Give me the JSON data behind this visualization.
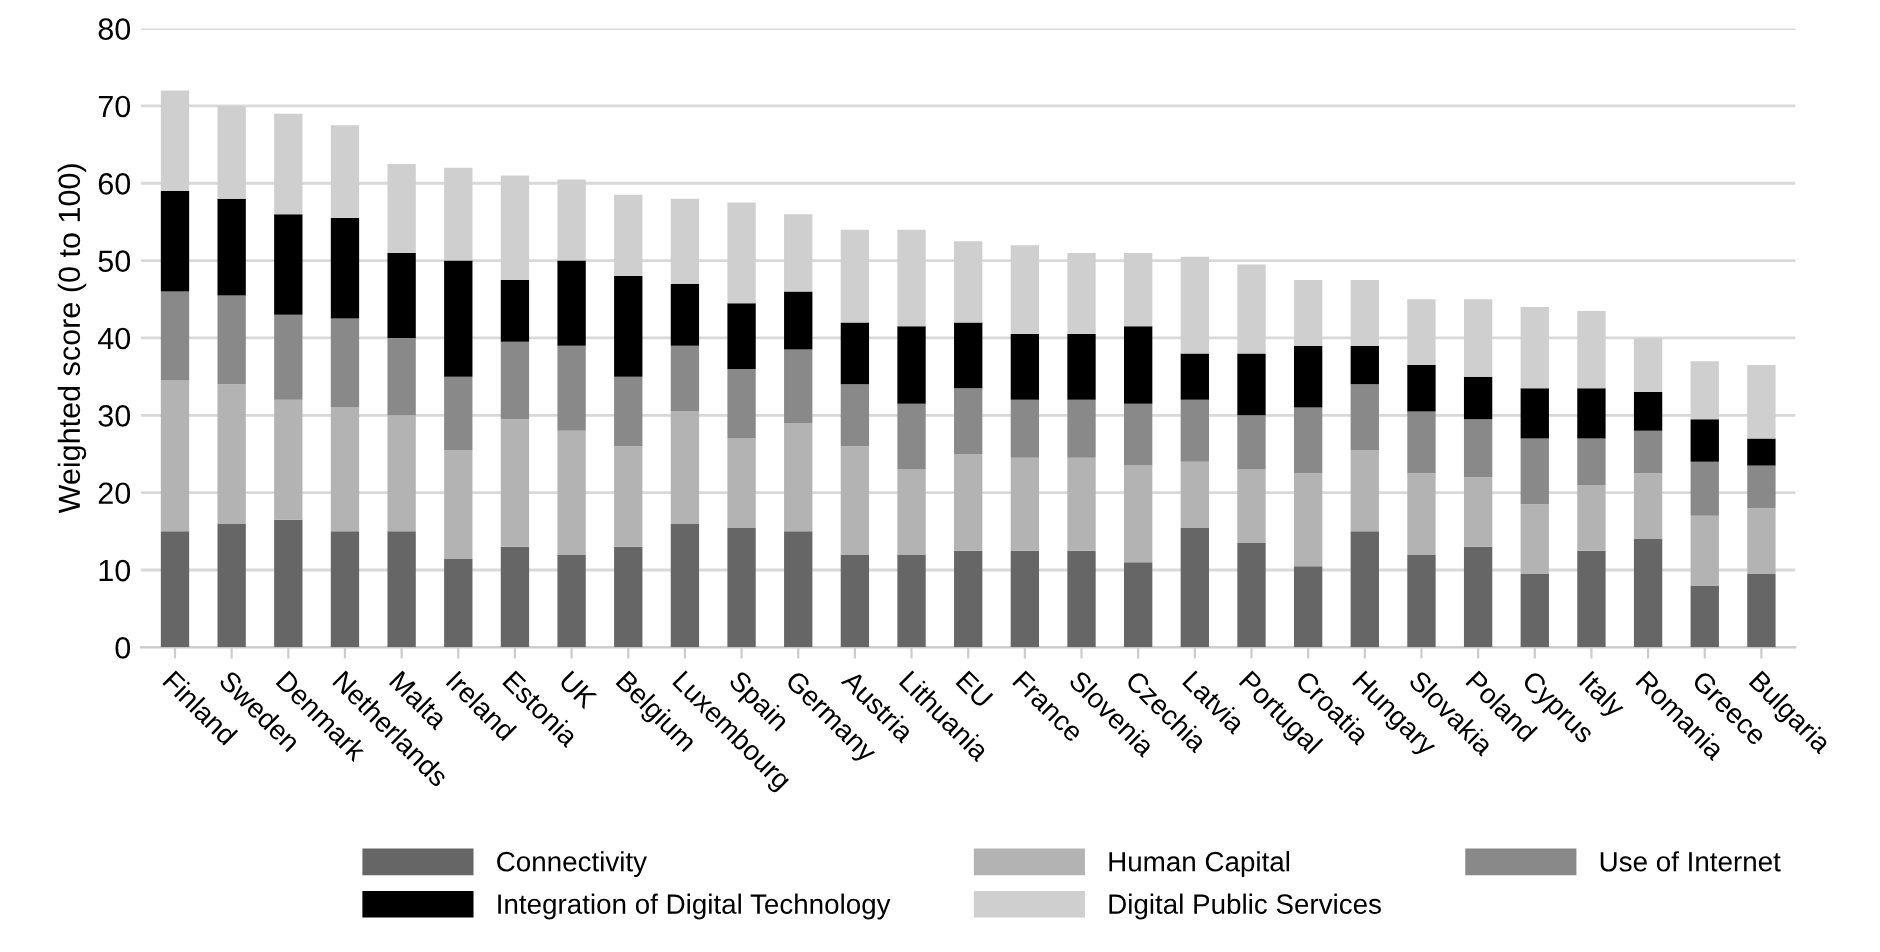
{
  "chart_data": {
    "type": "bar",
    "stacked": true,
    "ylabel": "Weighted score (0 to 100)",
    "categories": [
      "Finland",
      "Sweden",
      "Denmark",
      "Netherlands",
      "Malta",
      "Ireland",
      "Estonia",
      "UK",
      "Belgium",
      "Luxembourg",
      "Spain",
      "Germany",
      "Austria",
      "Lithuania",
      "EU",
      "France",
      "Slovenia",
      "Czechia",
      "Latvia",
      "Portugal",
      "Croatia",
      "Hungary",
      "Slovakia",
      "Poland",
      "Cyprus",
      "Italy",
      "Romania",
      "Greece",
      "Bulgaria"
    ],
    "series": [
      {
        "name": "Connectivity",
        "color": "#666666",
        "values": [
          15,
          16,
          16.5,
          15,
          15,
          11.5,
          13,
          12,
          13,
          16,
          15.5,
          15,
          12,
          12,
          12.5,
          12.5,
          12.5,
          11,
          15.5,
          13.5,
          10.5,
          15,
          12,
          13,
          9.5,
          12.5,
          14,
          8,
          9.5
        ]
      },
      {
        "name": "Human Capital",
        "color": "#b3b3b3",
        "values": [
          19.5,
          18,
          15.5,
          16,
          15,
          14,
          16.5,
          16,
          13,
          14.5,
          11.5,
          14,
          14,
          11,
          12.5,
          12,
          12,
          12.5,
          8.5,
          9.5,
          12,
          10.5,
          10.5,
          9,
          9,
          8.5,
          8.5,
          9,
          8.5
        ]
      },
      {
        "name": "Use of Internet",
        "color": "#898989",
        "values": [
          11.5,
          11.5,
          11,
          11.5,
          10,
          9.5,
          10,
          11,
          9,
          8.5,
          9,
          9.5,
          8,
          8.5,
          8.5,
          7.5,
          7.5,
          8,
          8,
          7,
          8.5,
          8.5,
          8,
          7.5,
          8.5,
          6,
          5.5,
          7,
          5.5
        ]
      },
      {
        "name": "Integration of Digital Technology",
        "color": "#000000",
        "values": [
          13,
          12.5,
          13,
          13,
          11,
          15,
          8,
          11,
          13,
          8,
          8.5,
          7.5,
          8,
          10,
          8.5,
          8.5,
          8.5,
          10,
          6,
          8,
          8,
          5,
          6,
          5.5,
          6.5,
          6.5,
          5,
          5.5,
          3.5
        ]
      },
      {
        "name": "Digital Public Services",
        "color": "#cfcfcf",
        "values": [
          13,
          12,
          13,
          12,
          11.5,
          12,
          13.5,
          10.5,
          10.5,
          11,
          13,
          10,
          12,
          12.5,
          10.5,
          11.5,
          10.5,
          9.5,
          12.5,
          11.5,
          8.5,
          8.5,
          8.5,
          10,
          10.5,
          10,
          7,
          7.5,
          9.5
        ]
      }
    ],
    "ylim": [
      0,
      80
    ],
    "yticks": [
      0,
      10,
      20,
      30,
      40,
      50,
      60,
      70,
      80
    ],
    "grid": "y",
    "legend": "bottom"
  }
}
